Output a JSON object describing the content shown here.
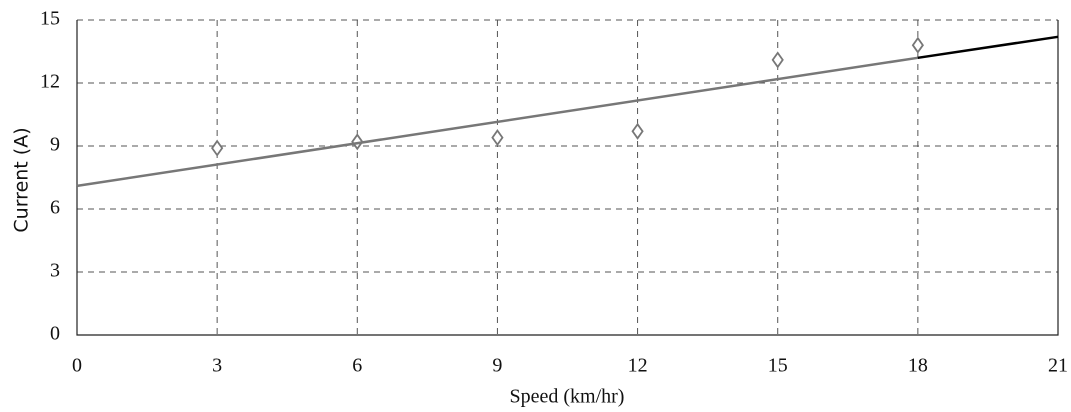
{
  "chart_data": {
    "type": "scatter",
    "x_label": "Speed (km/hr)",
    "y_label": "Current (A)",
    "xlim": [
      0,
      21
    ],
    "ylim": [
      0,
      15
    ],
    "xticks": [
      0,
      3,
      6,
      9,
      12,
      15,
      18,
      21
    ],
    "yticks": [
      0,
      3,
      6,
      9,
      12,
      15
    ],
    "grid": true,
    "series": [
      {
        "type": "scatter",
        "marker": "diamond",
        "color": "#777777",
        "x": [
          3,
          6,
          9,
          12,
          15,
          18
        ],
        "values": [
          8.9,
          9.2,
          9.4,
          9.7,
          13.1,
          13.8
        ]
      },
      {
        "type": "line",
        "color": "#777777",
        "x": [
          0,
          18
        ],
        "values": [
          7.1,
          13.2
        ]
      },
      {
        "type": "line",
        "color": "#000000",
        "x": [
          18,
          21
        ],
        "values": [
          13.2,
          14.2
        ]
      }
    ]
  }
}
